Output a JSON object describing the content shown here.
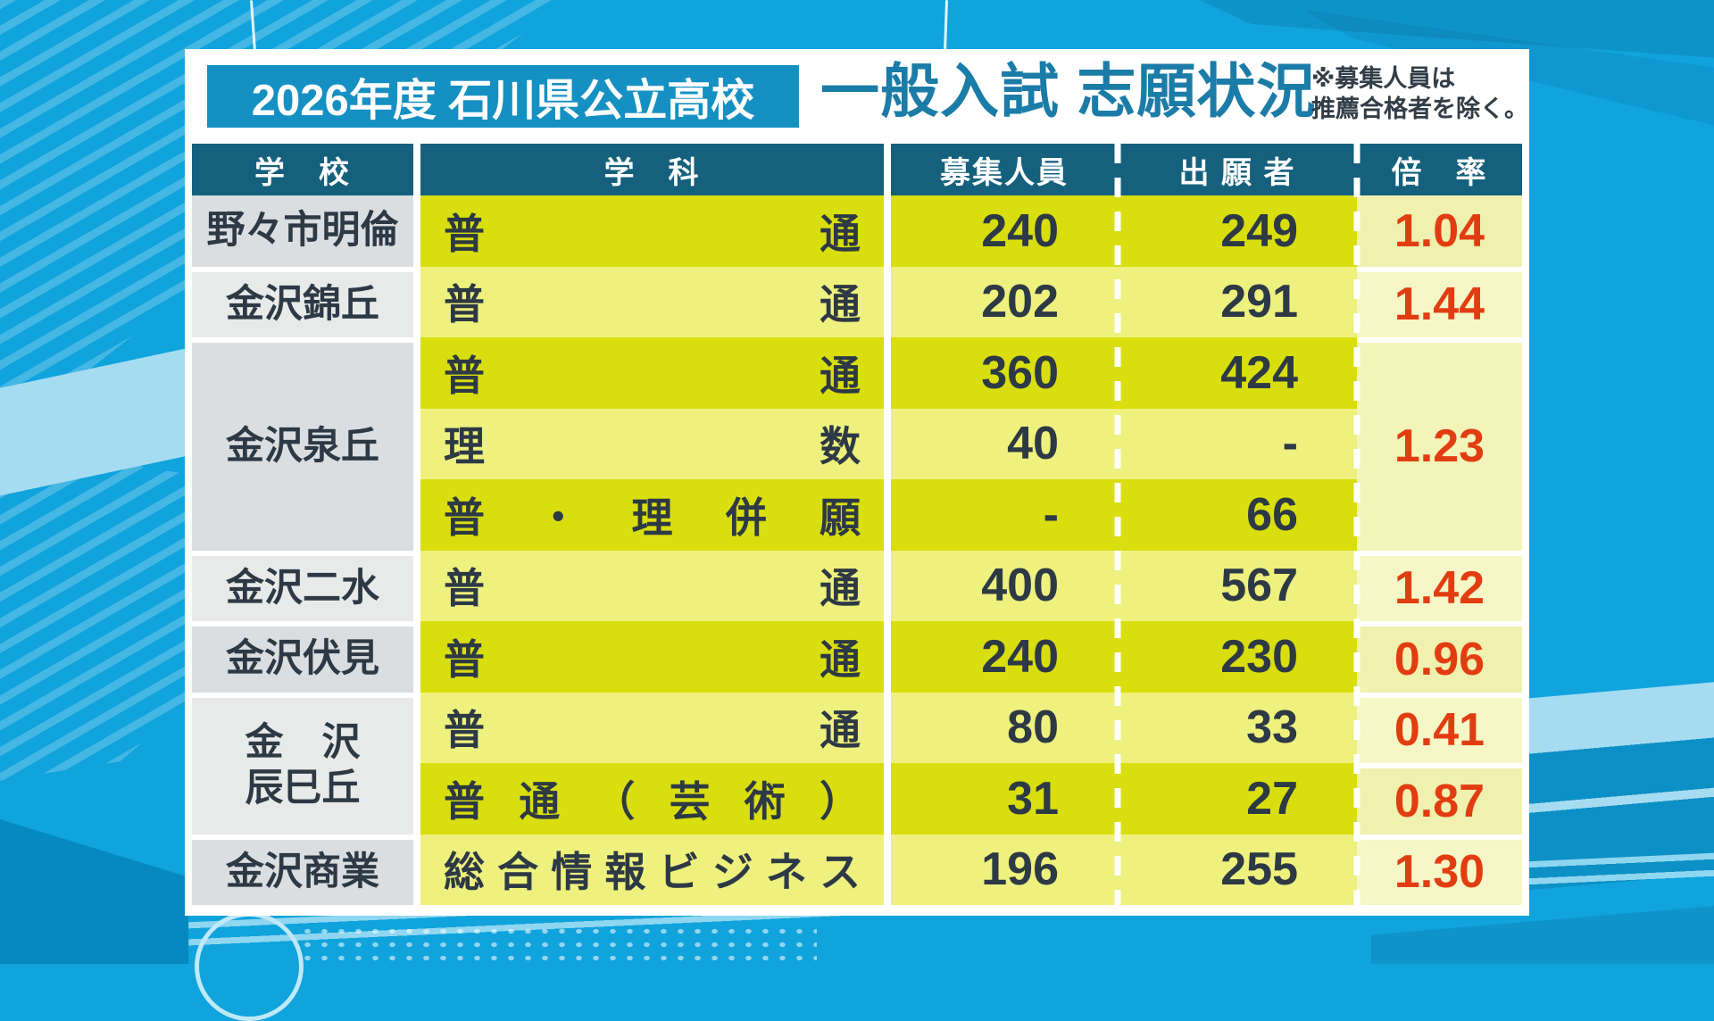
{
  "header": {
    "badge": "2026年度 石川県公立高校",
    "title": "一般入試 志願状況",
    "note_lines": [
      "※募集人員は",
      "推薦合格者を除く。"
    ]
  },
  "table": {
    "columns": {
      "school": "学　校",
      "subject": "学　科",
      "capacity": "募集人員",
      "applicants": "出 願 者",
      "ratio": "倍　率"
    },
    "schools": [
      {
        "name": "野々市明倫"
      },
      {
        "name": "金沢錦丘"
      },
      {
        "name": "金沢泉丘"
      },
      {
        "name": "金沢二水"
      },
      {
        "name": "金沢伏見"
      },
      {
        "lines": [
          "金　沢",
          "辰巳丘"
        ]
      },
      {
        "name": "金沢商業"
      }
    ],
    "rows": [
      {
        "subject": "普通",
        "capacity": "240",
        "applicants": "249"
      },
      {
        "subject": "普通",
        "capacity": "202",
        "applicants": "291"
      },
      {
        "subject": "普通",
        "capacity": "360",
        "applicants": "424"
      },
      {
        "subject": "理数",
        "capacity": "40",
        "applicants": "-"
      },
      {
        "subject": "普・理併願",
        "capacity": "-",
        "applicants": "66"
      },
      {
        "subject": "普通",
        "capacity": "400",
        "applicants": "567"
      },
      {
        "subject": "普通",
        "capacity": "240",
        "applicants": "230"
      },
      {
        "subject": "普通",
        "capacity": "80",
        "applicants": "33"
      },
      {
        "subject": "普通（芸術）",
        "capacity": "31",
        "applicants": "27"
      },
      {
        "subject": "総合情報ビジネス",
        "capacity": "196",
        "applicants": "255"
      }
    ],
    "ratios": [
      {
        "value": "1.04"
      },
      {
        "value": "1.44"
      },
      {
        "value": "1.23"
      },
      {
        "value": "1.42"
      },
      {
        "value": "0.96"
      },
      {
        "value": "0.41"
      },
      {
        "value": "0.87"
      },
      {
        "value": "1.30"
      }
    ]
  },
  "colors": {
    "background_blue": "#10a3dc",
    "badge_bg": "#1590c2",
    "title_text": "#1b7ca7",
    "table_header_bg": "#15607c",
    "row_dark_yellow": "#d9de0e",
    "row_light_yellow": "#eef17e",
    "ratio_col_bg": "#f3f4ba",
    "ratio_text_red": "#e23d12",
    "school_col_gray": "#dadee0",
    "body_text": "#2d3944"
  },
  "chart_data": {
    "type": "table",
    "title": "2026年度 石川県公立高校 一般入試 志願状況",
    "note": "※募集人員は推薦合格者を除く。",
    "columns": [
      "学校",
      "学科",
      "募集人員",
      "出願者",
      "倍率"
    ],
    "rows": [
      [
        "野々市明倫",
        "普通",
        240,
        249,
        1.04
      ],
      [
        "金沢錦丘",
        "普通",
        202,
        291,
        1.44
      ],
      [
        "金沢泉丘",
        "普通",
        360,
        424,
        1.23
      ],
      [
        "金沢泉丘",
        "理数",
        40,
        null,
        1.23
      ],
      [
        "金沢泉丘",
        "普・理併願",
        null,
        66,
        1.23
      ],
      [
        "金沢二水",
        "普通",
        400,
        567,
        1.42
      ],
      [
        "金沢伏見",
        "普通",
        240,
        230,
        0.96
      ],
      [
        "金沢辰巳丘",
        "普通",
        80,
        33,
        0.41
      ],
      [
        "金沢辰巳丘",
        "普通（芸術）",
        31,
        27,
        0.87
      ],
      [
        "金沢商業",
        "総合情報ビジネス",
        196,
        255,
        1.3
      ]
    ]
  }
}
